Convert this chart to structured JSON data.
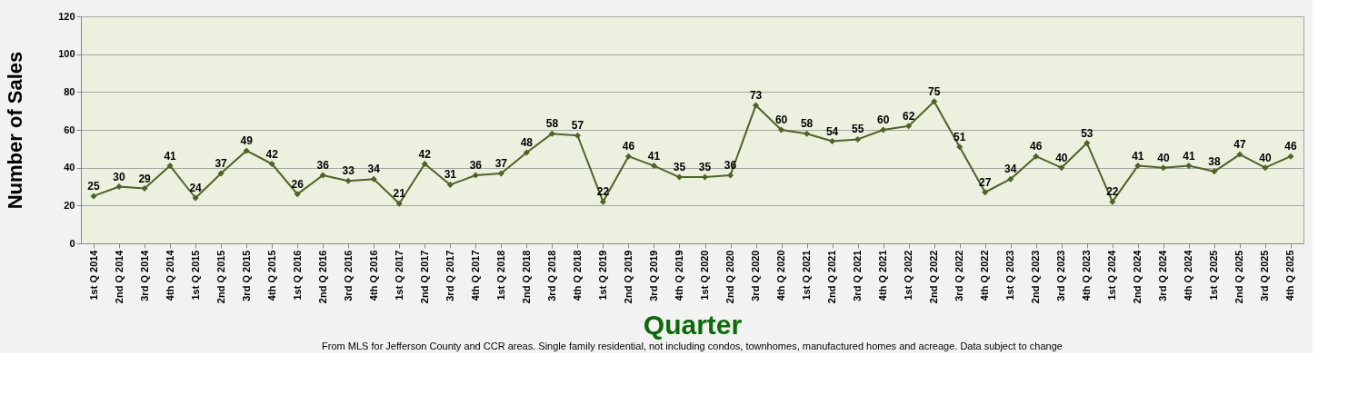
{
  "chart_data": {
    "type": "line",
    "xlabel": "Quarter",
    "ylabel": "Number of Sales",
    "annotations": [
      "From MLS for Jefferson County and CCR areas. Single family residential, not including condos, townhomes, manufactured homes and acreage.  Data subject to change"
    ],
    "categories": [
      "1st Q 2014",
      "2nd Q 2014",
      "3rd Q 2014",
      "4th Q 2014",
      "1st Q 2015",
      "2nd Q 2015",
      "3rd Q 2015",
      "4th Q 2015",
      "1st Q 2016",
      "2nd Q 2016",
      "3rd Q 2016",
      "4th Q 2016",
      "1st Q 2017",
      "2nd Q 2017",
      "3rd Q 2017",
      "4th Q 2017",
      "1st Q 2018",
      "2nd Q 2018",
      "3rd Q 2018",
      "4th Q 2018",
      "1st Q 2019",
      "2nd Q 2019",
      "3rd Q 2019",
      "4th Q 2019",
      "1st Q 2020",
      "2nd Q 2020",
      "3rd Q 2020",
      "4th Q 2020",
      "1st Q 2021",
      "2nd Q 2021",
      "3rd Q 2021",
      "4th Q 2021",
      "1st Q 2022",
      "2nd Q 2022",
      "3rd Q 2022",
      "4th Q 2022",
      "1st Q 2023",
      "2nd Q 2023",
      "3rd Q 2023",
      "4th Q 2023",
      "1st Q 2024",
      "2nd Q 2024",
      "3rd Q 2024",
      "4th Q 2024",
      "1st Q 2025",
      "2nd Q 2025",
      "3rd Q 2025",
      "4th Q 2025"
    ],
    "series": [
      {
        "color": "#4f6228",
        "values": [
          25,
          30,
          29,
          41,
          24,
          37,
          49,
          42,
          26,
          36,
          33,
          34,
          21,
          42,
          31,
          36,
          37,
          48,
          58,
          57,
          22,
          46,
          41,
          35,
          35,
          36,
          73,
          60,
          58,
          54,
          55,
          60,
          62,
          75,
          51,
          27,
          34,
          46,
          40,
          53,
          22,
          41,
          40,
          41,
          38,
          47,
          40,
          46
        ]
      }
    ],
    "ylim": [
      0,
      120
    ],
    "yticks": [
      0,
      20,
      40,
      60,
      80,
      100,
      120
    ],
    "grid": "y",
    "marker": "diamond",
    "line_style": "solid",
    "data_labels": true,
    "legend": false
  }
}
